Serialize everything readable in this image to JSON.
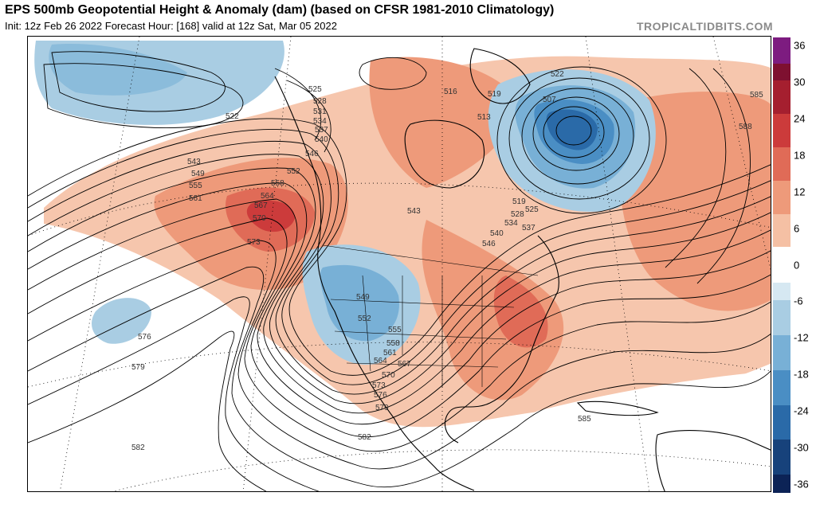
{
  "header": {
    "title": "EPS 500mb Geopotential Height & Anomaly (dam) (based on CFSR 1981-2010 Climatology)",
    "subtitle": "Init: 12z Feb 26 2022   Forecast Hour: [168]   valid at 12z Sat, Mar 05 2022",
    "site": "TROPICALTIDBITS.COM"
  },
  "colors": {
    "anomaly_pos": [
      "#fbe3d6",
      "#f5c0a4",
      "#ee9a7a",
      "#e06b57",
      "#cc3b3b",
      "#a51f2f",
      "#7e1030"
    ],
    "anomaly_neg": [
      "#d6e8f2",
      "#a9cde3",
      "#78b0d6",
      "#4a8ec4",
      "#2a6aa8",
      "#17427b",
      "#0c2356"
    ],
    "top_cap": "#7d1c80",
    "contour": "#000000"
  },
  "colorbar": {
    "labels": [
      "36",
      "30",
      "24",
      "18",
      "12",
      "6",
      "0",
      "-6",
      "-12",
      "-18",
      "-24",
      "-30",
      "-36"
    ]
  },
  "contour_labels": [
    "522",
    "525",
    "528",
    "531",
    "534",
    "537",
    "540",
    "543",
    "546",
    "549",
    "552",
    "555",
    "558",
    "561",
    "564",
    "567",
    "570",
    "573",
    "576",
    "579",
    "582",
    "585",
    "588",
    "507",
    "513",
    "516",
    "519"
  ],
  "map": {
    "projection": "polar-stereographic North America",
    "anomaly_features": [
      {
        "name": "NE Pacific cold trough",
        "sign": "neg",
        "peak": -9
      },
      {
        "name": "West coast ridge",
        "sign": "pos",
        "peak": 27
      },
      {
        "name": "Labrador Sea trough",
        "sign": "neg",
        "peak": -27
      },
      {
        "name": "Southwest US trough",
        "sign": "neg",
        "peak": -12
      },
      {
        "name": "Eastern US ridge",
        "sign": "pos",
        "peak": 18
      },
      {
        "name": "Central Atlantic ridge",
        "sign": "pos",
        "peak": 15
      },
      {
        "name": "Subtropical Pacific low",
        "sign": "neg",
        "peak": -8
      }
    ]
  }
}
